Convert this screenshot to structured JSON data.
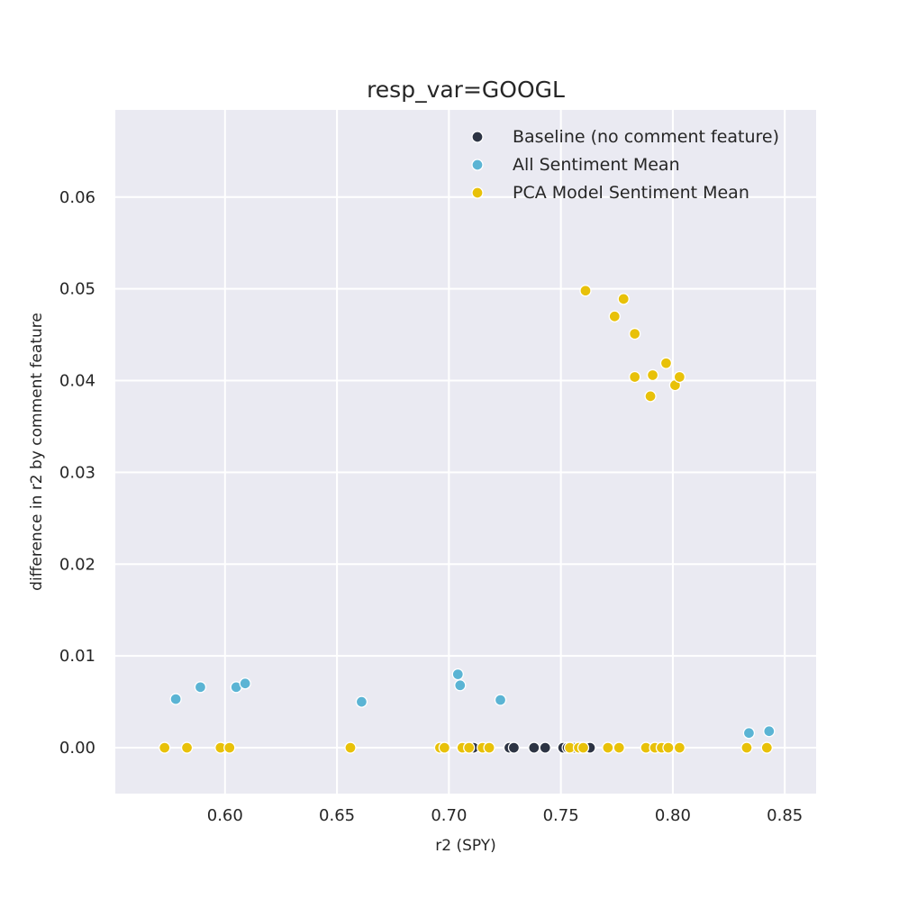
{
  "chart_data": {
    "type": "scatter",
    "title": "resp_var=GOOGL",
    "xlabel": "r2 (SPY)",
    "ylabel": "difference in r2 by comment feature",
    "xlim": [
      0.551,
      0.864
    ],
    "ylim": [
      -0.005,
      0.0695
    ],
    "xticks": [
      0.6,
      0.65,
      0.7,
      0.75,
      0.8,
      0.85
    ],
    "xtick_labels": [
      "0.60",
      "0.65",
      "0.70",
      "0.75",
      "0.80",
      "0.85"
    ],
    "yticks": [
      0.0,
      0.01,
      0.02,
      0.03,
      0.04,
      0.05,
      0.06
    ],
    "ytick_labels": [
      "0.00",
      "0.01",
      "0.02",
      "0.03",
      "0.04",
      "0.05",
      "0.06"
    ],
    "grid": true,
    "legend_position": "top-right",
    "series": [
      {
        "name": "Baseline (no comment feature)",
        "color": "#2d3444",
        "points": [
          {
            "x": 0.709,
            "y": 0.0
          },
          {
            "x": 0.711,
            "y": 0.0
          },
          {
            "x": 0.727,
            "y": 0.0
          },
          {
            "x": 0.729,
            "y": 0.0
          },
          {
            "x": 0.738,
            "y": 0.0
          },
          {
            "x": 0.743,
            "y": 0.0
          },
          {
            "x": 0.751,
            "y": 0.0
          },
          {
            "x": 0.753,
            "y": 0.0
          },
          {
            "x": 0.756,
            "y": 0.0
          },
          {
            "x": 0.759,
            "y": 0.0
          },
          {
            "x": 0.762,
            "y": 0.0
          },
          {
            "x": 0.763,
            "y": 0.0
          }
        ]
      },
      {
        "name": "All Sentiment Mean",
        "color": "#5bb4d4",
        "points": [
          {
            "x": 0.578,
            "y": 0.0053
          },
          {
            "x": 0.589,
            "y": 0.0066
          },
          {
            "x": 0.605,
            "y": 0.0066
          },
          {
            "x": 0.609,
            "y": 0.007
          },
          {
            "x": 0.661,
            "y": 0.005
          },
          {
            "x": 0.704,
            "y": 0.008
          },
          {
            "x": 0.705,
            "y": 0.0068
          },
          {
            "x": 0.723,
            "y": 0.0052
          },
          {
            "x": 0.834,
            "y": 0.0016
          },
          {
            "x": 0.843,
            "y": 0.0018
          }
        ]
      },
      {
        "name": "PCA Model Sentiment Mean",
        "color": "#e8c109",
        "points": [
          {
            "x": 0.573,
            "y": 0.0
          },
          {
            "x": 0.583,
            "y": 0.0
          },
          {
            "x": 0.598,
            "y": 0.0
          },
          {
            "x": 0.602,
            "y": 0.0
          },
          {
            "x": 0.656,
            "y": 0.0
          },
          {
            "x": 0.696,
            "y": 0.0
          },
          {
            "x": 0.698,
            "y": 0.0
          },
          {
            "x": 0.706,
            "y": 0.0
          },
          {
            "x": 0.709,
            "y": 0.0
          },
          {
            "x": 0.715,
            "y": 0.0
          },
          {
            "x": 0.718,
            "y": 0.0
          },
          {
            "x": 0.754,
            "y": 0.0
          },
          {
            "x": 0.758,
            "y": 0.0
          },
          {
            "x": 0.76,
            "y": 0.0
          },
          {
            "x": 0.771,
            "y": 0.0
          },
          {
            "x": 0.776,
            "y": 0.0
          },
          {
            "x": 0.788,
            "y": 0.0
          },
          {
            "x": 0.792,
            "y": 0.0
          },
          {
            "x": 0.795,
            "y": 0.0
          },
          {
            "x": 0.798,
            "y": 0.0
          },
          {
            "x": 0.803,
            "y": 0.0
          },
          {
            "x": 0.833,
            "y": 0.0
          },
          {
            "x": 0.842,
            "y": 0.0
          },
          {
            "x": 0.761,
            "y": 0.0498
          },
          {
            "x": 0.774,
            "y": 0.047
          },
          {
            "x": 0.778,
            "y": 0.0489
          },
          {
            "x": 0.783,
            "y": 0.0451
          },
          {
            "x": 0.783,
            "y": 0.0404
          },
          {
            "x": 0.79,
            "y": 0.0383
          },
          {
            "x": 0.791,
            "y": 0.0406
          },
          {
            "x": 0.797,
            "y": 0.0419
          },
          {
            "x": 0.801,
            "y": 0.0395
          },
          {
            "x": 0.803,
            "y": 0.0404
          }
        ]
      }
    ]
  }
}
